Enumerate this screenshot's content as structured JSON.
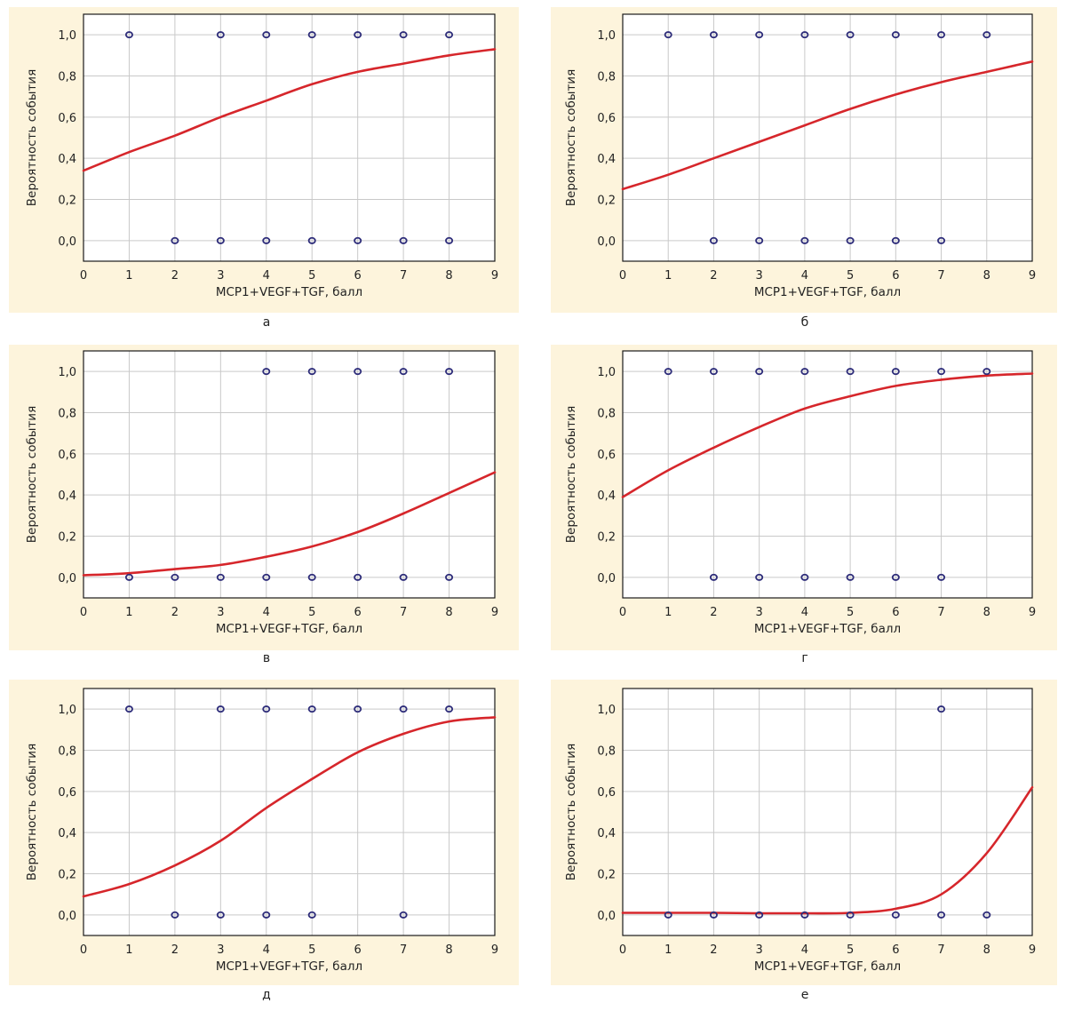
{
  "chart_data": [
    {
      "type": "scatter",
      "panel_label": "а",
      "xlabel": "MCP1+VEGF+TGF, балл",
      "ylabel": "Вероятность события",
      "xlim": [
        0,
        9
      ],
      "ylim": [
        -0.1,
        1.1
      ],
      "xticks": [
        "0",
        "1",
        "2",
        "3",
        "4",
        "5",
        "6",
        "7",
        "8",
        "9"
      ],
      "yticks": [
        "0,0",
        "0,2",
        "0,4",
        "0,6",
        "0,8",
        "1,0"
      ],
      "grid": true,
      "colors": {
        "background": "#fdf4dc",
        "plot": "#ffffff",
        "curve": "#d6262b",
        "points": "#2e2d7a"
      },
      "points": [
        [
          1,
          1
        ],
        [
          3,
          1
        ],
        [
          4,
          1
        ],
        [
          5,
          1
        ],
        [
          6,
          1
        ],
        [
          7,
          1
        ],
        [
          8,
          1
        ],
        [
          2,
          0
        ],
        [
          3,
          0
        ],
        [
          4,
          0
        ],
        [
          5,
          0
        ],
        [
          6,
          0
        ],
        [
          7,
          0
        ],
        [
          8,
          0
        ]
      ],
      "curve": [
        [
          0,
          0.34
        ],
        [
          1,
          0.43
        ],
        [
          2,
          0.51
        ],
        [
          3,
          0.6
        ],
        [
          4,
          0.68
        ],
        [
          5,
          0.76
        ],
        [
          6,
          0.82
        ],
        [
          7,
          0.86
        ],
        [
          8,
          0.9
        ],
        [
          9,
          0.93
        ]
      ]
    },
    {
      "type": "scatter",
      "panel_label": "б",
      "xlabel": "MCP1+VEGF+TGF, балл",
      "ylabel": "Вероятность события",
      "xlim": [
        0,
        9
      ],
      "ylim": [
        -0.1,
        1.1
      ],
      "xticks": [
        "0",
        "1",
        "2",
        "3",
        "4",
        "5",
        "6",
        "7",
        "8",
        "9"
      ],
      "yticks": [
        "0,0",
        "0,2",
        "0,4",
        "0,6",
        "0,8",
        "1,0"
      ],
      "grid": true,
      "colors": {
        "background": "#fdf4dc",
        "plot": "#ffffff",
        "curve": "#d6262b",
        "points": "#2e2d7a"
      },
      "points": [
        [
          1,
          1
        ],
        [
          2,
          1
        ],
        [
          3,
          1
        ],
        [
          4,
          1
        ],
        [
          5,
          1
        ],
        [
          6,
          1
        ],
        [
          7,
          1
        ],
        [
          8,
          1
        ],
        [
          2,
          0
        ],
        [
          3,
          0
        ],
        [
          4,
          0
        ],
        [
          5,
          0
        ],
        [
          6,
          0
        ],
        [
          7,
          0
        ]
      ],
      "curve": [
        [
          0,
          0.25
        ],
        [
          1,
          0.32
        ],
        [
          2,
          0.4
        ],
        [
          3,
          0.48
        ],
        [
          4,
          0.56
        ],
        [
          5,
          0.64
        ],
        [
          6,
          0.71
        ],
        [
          7,
          0.77
        ],
        [
          8,
          0.82
        ],
        [
          9,
          0.87
        ]
      ]
    },
    {
      "type": "scatter",
      "panel_label": "в",
      "xlabel": "MCP1+VEGF+TGF, балл",
      "ylabel": "Вероятность события",
      "xlim": [
        0,
        9
      ],
      "ylim": [
        -0.1,
        1.1
      ],
      "xticks": [
        "0",
        "1",
        "2",
        "3",
        "4",
        "5",
        "6",
        "7",
        "8",
        "9"
      ],
      "yticks": [
        "0,0",
        "0,2",
        "0,4",
        "0,6",
        "0,8",
        "1,0"
      ],
      "grid": true,
      "colors": {
        "background": "#fdf4dc",
        "plot": "#ffffff",
        "curve": "#d6262b",
        "points": "#2e2d7a"
      },
      "points": [
        [
          4,
          1
        ],
        [
          5,
          1
        ],
        [
          6,
          1
        ],
        [
          7,
          1
        ],
        [
          8,
          1
        ],
        [
          1,
          0
        ],
        [
          2,
          0
        ],
        [
          3,
          0
        ],
        [
          4,
          0
        ],
        [
          5,
          0
        ],
        [
          6,
          0
        ],
        [
          7,
          0
        ],
        [
          8,
          0
        ]
      ],
      "curve": [
        [
          0,
          0.01
        ],
        [
          1,
          0.02
        ],
        [
          2,
          0.04
        ],
        [
          3,
          0.06
        ],
        [
          4,
          0.1
        ],
        [
          5,
          0.15
        ],
        [
          6,
          0.22
        ],
        [
          7,
          0.31
        ],
        [
          8,
          0.41
        ],
        [
          9,
          0.51
        ]
      ]
    },
    {
      "type": "scatter",
      "panel_label": "г",
      "xlabel": "MCP1+VEGF+TGF, балл",
      "ylabel": "Вероятность события",
      "xlim": [
        0,
        9
      ],
      "ylim": [
        -0.1,
        1.1
      ],
      "xticks": [
        "0",
        "1",
        "2",
        "3",
        "4",
        "5",
        "6",
        "7",
        "8",
        "9"
      ],
      "yticks": [
        "0,0",
        "0,2",
        "0,4",
        "0,6",
        "0,8",
        "1,0"
      ],
      "grid": true,
      "colors": {
        "background": "#fdf4dc",
        "plot": "#ffffff",
        "curve": "#d6262b",
        "points": "#2e2d7a"
      },
      "points": [
        [
          1,
          1
        ],
        [
          2,
          1
        ],
        [
          3,
          1
        ],
        [
          4,
          1
        ],
        [
          5,
          1
        ],
        [
          6,
          1
        ],
        [
          7,
          1
        ],
        [
          8,
          1
        ],
        [
          2,
          0
        ],
        [
          3,
          0
        ],
        [
          4,
          0
        ],
        [
          5,
          0
        ],
        [
          6,
          0
        ],
        [
          7,
          0
        ]
      ],
      "curve": [
        [
          0,
          0.39
        ],
        [
          1,
          0.52
        ],
        [
          2,
          0.63
        ],
        [
          3,
          0.73
        ],
        [
          4,
          0.82
        ],
        [
          5,
          0.88
        ],
        [
          6,
          0.93
        ],
        [
          7,
          0.96
        ],
        [
          8,
          0.98
        ],
        [
          9,
          0.99
        ]
      ]
    },
    {
      "type": "scatter",
      "panel_label": "д",
      "xlabel": "MCP1+VEGF+TGF, балл",
      "ylabel": "Вероятность события",
      "xlim": [
        0,
        9
      ],
      "ylim": [
        -0.1,
        1.1
      ],
      "xticks": [
        "0",
        "1",
        "2",
        "3",
        "4",
        "5",
        "6",
        "7",
        "8",
        "9"
      ],
      "yticks": [
        "0,0",
        "0,2",
        "0,4",
        "0,6",
        "0,8",
        "1,0"
      ],
      "grid": true,
      "colors": {
        "background": "#fdf4dc",
        "plot": "#ffffff",
        "curve": "#d6262b",
        "points": "#2e2d7a"
      },
      "points": [
        [
          1,
          1
        ],
        [
          3,
          1
        ],
        [
          4,
          1
        ],
        [
          5,
          1
        ],
        [
          6,
          1
        ],
        [
          7,
          1
        ],
        [
          8,
          1
        ],
        [
          2,
          0
        ],
        [
          3,
          0
        ],
        [
          4,
          0
        ],
        [
          5,
          0
        ],
        [
          7,
          0
        ]
      ],
      "curve": [
        [
          0,
          0.09
        ],
        [
          1,
          0.15
        ],
        [
          2,
          0.24
        ],
        [
          3,
          0.36
        ],
        [
          4,
          0.52
        ],
        [
          5,
          0.66
        ],
        [
          6,
          0.79
        ],
        [
          7,
          0.88
        ],
        [
          8,
          0.94
        ],
        [
          9,
          0.96
        ]
      ]
    },
    {
      "type": "scatter",
      "panel_label": "е",
      "xlabel": "MCP1+VEGF+TGF, балл",
      "ylabel": "Вероятность события",
      "xlim": [
        0,
        9
      ],
      "ylim": [
        -0.1,
        1.1
      ],
      "xticks": [
        "0",
        "1",
        "2",
        "3",
        "4",
        "5",
        "6",
        "7",
        "8",
        "9"
      ],
      "yticks": [
        "0,0",
        "0,2",
        "0,4",
        "0,6",
        "0,8",
        "1,0"
      ],
      "grid": true,
      "colors": {
        "background": "#fdf4dc",
        "plot": "#ffffff",
        "curve": "#d6262b",
        "points": "#2e2d7a"
      },
      "points": [
        [
          7,
          1
        ],
        [
          1,
          0
        ],
        [
          2,
          0
        ],
        [
          3,
          0
        ],
        [
          4,
          0
        ],
        [
          5,
          0
        ],
        [
          6,
          0
        ],
        [
          7,
          0
        ],
        [
          8,
          0
        ]
      ],
      "curve": [
        [
          0,
          0.01
        ],
        [
          1,
          0.01
        ],
        [
          2,
          0.01
        ],
        [
          3,
          0.008
        ],
        [
          4,
          0.008
        ],
        [
          5,
          0.01
        ],
        [
          6,
          0.03
        ],
        [
          7,
          0.1
        ],
        [
          8,
          0.3
        ],
        [
          9,
          0.62
        ]
      ]
    }
  ]
}
